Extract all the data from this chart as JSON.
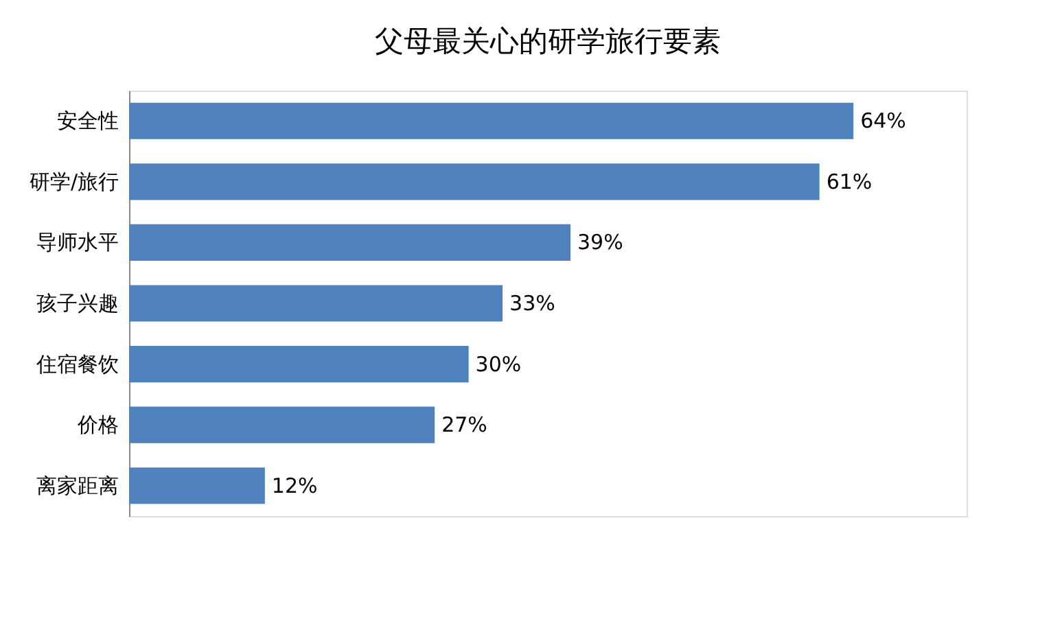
{
  "chart_data": {
    "type": "bar",
    "orientation": "horizontal",
    "title": "父母最关心的研学旅行要素",
    "categories": [
      "安全性",
      "研学/旅行",
      "导师水平",
      "孩子兴趣",
      "住宿餐饮",
      "价格",
      "离家距离"
    ],
    "values": [
      64,
      61,
      39,
      33,
      30,
      27,
      12
    ],
    "value_labels": [
      "64%",
      "61%",
      "39%",
      "33%",
      "30%",
      "27%",
      "12%"
    ],
    "color": "#4f81bd",
    "xlim": [
      0,
      74
    ]
  }
}
